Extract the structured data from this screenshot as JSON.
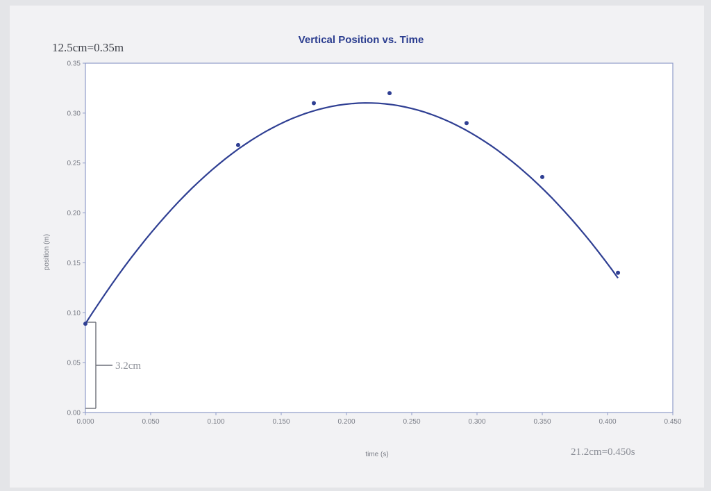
{
  "chart_data": {
    "type": "line",
    "title": "Vertical Position vs. Time",
    "xlabel": "time (s)",
    "ylabel": "position (m)",
    "xlim": [
      0,
      0.45
    ],
    "ylim": [
      0,
      0.35
    ],
    "x_ticks": [
      "0.000",
      "0.050",
      "0.100",
      "0.150",
      "0.200",
      "0.250",
      "0.300",
      "0.350",
      "0.400",
      "0.450"
    ],
    "y_ticks": [
      "0.00",
      "0.05",
      "0.10",
      "0.15",
      "0.20",
      "0.25",
      "0.30",
      "0.35"
    ],
    "grid": false,
    "x": [
      0.0,
      0.117,
      0.175,
      0.233,
      0.292,
      0.35,
      0.408
    ],
    "y": [
      0.089,
      0.268,
      0.31,
      0.32,
      0.29,
      0.236,
      0.14
    ],
    "fit_curve": {
      "type": "quadratic",
      "a": -4.75,
      "b": 2.05,
      "c": 0.089,
      "x_range": [
        0.0,
        0.408
      ]
    },
    "annotations": {
      "scale_y": "12.5cm=0.35m",
      "offset": "3.2cm",
      "scale_x": "21.2cm=0.450s"
    }
  }
}
